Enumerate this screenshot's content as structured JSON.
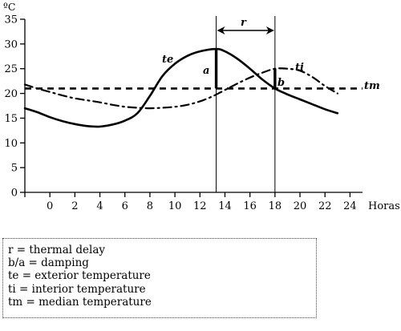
{
  "chart_data": {
    "type": "line",
    "title": "",
    "ylabel": "ºC",
    "xlabel": "Horas",
    "ylim": [
      0,
      35
    ],
    "yticks": [
      0,
      5,
      10,
      15,
      20,
      25,
      30,
      35
    ],
    "xticks": [
      0,
      2,
      4,
      6,
      8,
      10,
      12,
      14,
      16,
      18,
      20,
      22,
      24
    ],
    "x_axis_hidden_ticks": [
      -2
    ],
    "grid": false,
    "series": [
      {
        "name": "te",
        "style": "solid",
        "x": [
          -2,
          -1,
          0,
          1,
          2,
          3,
          4,
          5,
          6,
          7,
          8,
          9,
          10,
          11,
          12,
          13.3,
          14,
          15,
          16,
          17,
          18,
          19,
          20,
          21,
          22,
          23
        ],
        "y": [
          17,
          16.2,
          15.2,
          14.4,
          13.8,
          13.4,
          13.3,
          13.7,
          14.5,
          16,
          19.5,
          23.5,
          26,
          27.6,
          28.5,
          29,
          28.5,
          27,
          25,
          22.8,
          21,
          19.8,
          18.8,
          17.8,
          16.8,
          16
        ]
      },
      {
        "name": "ti",
        "style": "dash-dot",
        "x": [
          -2,
          -1,
          0,
          1,
          2,
          3,
          4,
          5,
          6,
          7,
          8,
          9,
          10,
          11,
          12,
          13,
          14,
          15,
          16,
          17,
          18,
          19,
          20,
          21,
          22,
          23
        ],
        "y": [
          21.8,
          21,
          20.3,
          19.6,
          19,
          18.6,
          18.2,
          17.7,
          17.3,
          17.1,
          17,
          17.1,
          17.3,
          17.7,
          18.4,
          19.4,
          20.7,
          22,
          23.2,
          24.2,
          25,
          25,
          24.6,
          23.3,
          21.5,
          20
        ]
      },
      {
        "name": "tm",
        "style": "dashed",
        "x": [
          -2,
          25
        ],
        "y": [
          21,
          21
        ]
      }
    ],
    "annotations": {
      "te_label": "te",
      "ti_label": "ti",
      "tm_label": "tm",
      "a_label": "a",
      "b_label": "b",
      "r_label": "r",
      "r_range_x": [
        13.3,
        18
      ],
      "a_bar": {
        "x": 13.3,
        "y": [
          21,
          29
        ]
      },
      "b_bar": {
        "x": 18,
        "y": [
          21,
          25
        ]
      }
    }
  },
  "legend": {
    "lines": [
      "r = thermal delay",
      "b/a = damping",
      "te = exterior temperature",
      "ti = interior temperature",
      "tm = median temperature"
    ]
  }
}
